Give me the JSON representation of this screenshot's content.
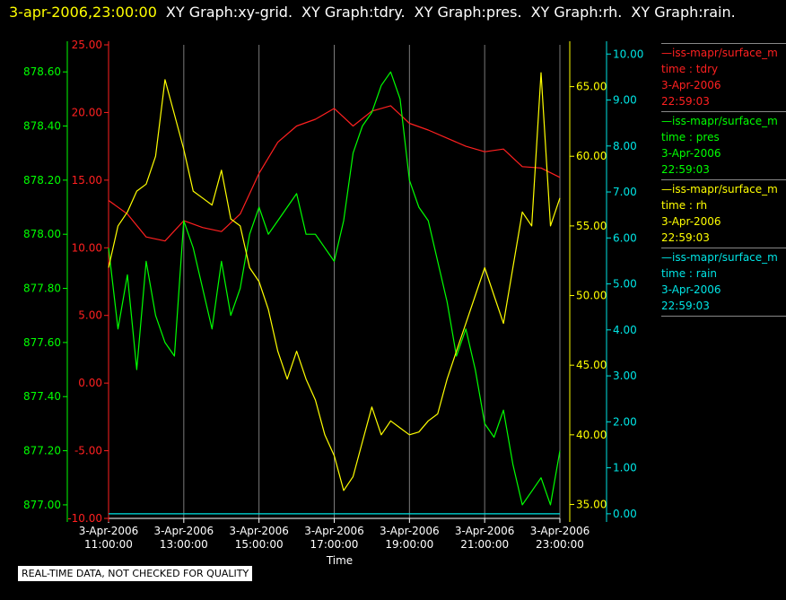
{
  "header": {
    "timestamp": "3-apr-2006,23:00:00",
    "graphs": [
      "XY Graph:xy-grid.",
      "XY Graph:tdry.",
      "XY Graph:pres.",
      "XY Graph:rh.",
      "XY Graph:rain."
    ]
  },
  "legend": [
    {
      "source": "—iss-mapr/surface_m",
      "field": "time : tdry",
      "date": "3-Apr-2006",
      "time": "22:59:03",
      "color": "#ff2020"
    },
    {
      "source": "—iss-mapr/surface_m",
      "field": "time : pres",
      "date": "3-Apr-2006",
      "time": "22:59:03",
      "color": "#00ff00"
    },
    {
      "source": "—iss-mapr/surface_m",
      "field": "time : rh",
      "date": "3-Apr-2006",
      "time": "22:59:03",
      "color": "#ffff00"
    },
    {
      "source": "—iss-mapr/surface_m",
      "field": "time : rain",
      "date": "3-Apr-2006",
      "time": "22:59:03",
      "color": "#00e5e5"
    }
  ],
  "quality_note": "REAL-TIME DATA, NOT CHECKED FOR QUALITY",
  "chart_data": {
    "type": "line",
    "xlabel": "Time",
    "xlim": [
      11,
      23
    ],
    "x_ticks": [
      {
        "value": 11,
        "date": "3-Apr-2006",
        "time": "11:00:00"
      },
      {
        "value": 13,
        "date": "3-Apr-2006",
        "time": "13:00:00"
      },
      {
        "value": 15,
        "date": "3-Apr-2006",
        "time": "15:00:00"
      },
      {
        "value": 17,
        "date": "3-Apr-2006",
        "time": "17:00:00"
      },
      {
        "value": 19,
        "date": "3-Apr-2006",
        "time": "19:00:00"
      },
      {
        "value": 21,
        "date": "3-Apr-2006",
        "time": "21:00:00"
      },
      {
        "value": 23,
        "date": "3-Apr-2006",
        "time": "23:00:00"
      }
    ],
    "grid": "vertical",
    "legend_placement": "right",
    "axes": {
      "pres": {
        "range": [
          876.95,
          878.7
        ],
        "ticks": [
          "877.00",
          "877.20",
          "877.40",
          "877.60",
          "877.80",
          "878.00",
          "878.20",
          "878.40",
          "878.60"
        ],
        "color": "#00ff00",
        "side": "left-outer"
      },
      "tdry": {
        "range": [
          -10,
          25
        ],
        "ticks": [
          "-10.00",
          "-5.00",
          "0.00",
          "5.00",
          "10.00",
          "15.00",
          "20.00",
          "25.00"
        ],
        "color": "#ff2020",
        "side": "left-inner"
      },
      "rh": {
        "range": [
          34,
          68
        ],
        "ticks": [
          "35.00",
          "40.00",
          "45.00",
          "50.00",
          "55.00",
          "60.00",
          "65.00"
        ],
        "color": "#ffff00",
        "side": "right-inner"
      },
      "rain": {
        "range": [
          -0.1,
          10.2
        ],
        "ticks": [
          "0.00",
          "1.00",
          "2.00",
          "3.00",
          "4.00",
          "5.00",
          "6.00",
          "7.00",
          "8.00",
          "9.00",
          "10.00"
        ],
        "color": "#00e5e5",
        "side": "right-outer"
      }
    },
    "series": [
      {
        "name": "tdry",
        "axis": "tdry",
        "color": "#ff2020",
        "x": [
          11,
          11.5,
          12,
          12.5,
          13,
          13.5,
          14,
          14.5,
          15,
          15.5,
          16,
          16.5,
          17,
          17.5,
          18,
          18.5,
          19,
          19.5,
          20,
          20.5,
          21,
          21.5,
          22,
          22.5,
          23
        ],
        "y": [
          13.5,
          12.5,
          10.8,
          10.5,
          12,
          11.5,
          11.2,
          12.5,
          15.5,
          17.8,
          19,
          19.5,
          20.3,
          19,
          20.1,
          20.5,
          19.2,
          18.7,
          18.1,
          17.5,
          17.1,
          17.3,
          16,
          15.9,
          15.2
        ]
      },
      {
        "name": "pres",
        "axis": "pres",
        "color": "#00ff00",
        "x": [
          11,
          11.25,
          11.5,
          11.75,
          12,
          12.25,
          12.5,
          12.75,
          13,
          13.25,
          13.5,
          13.75,
          14,
          14.25,
          14.5,
          14.75,
          15,
          15.25,
          15.5,
          15.75,
          16,
          16.25,
          16.5,
          16.75,
          17,
          17.25,
          17.5,
          17.75,
          18,
          18.25,
          18.5,
          18.75,
          19,
          19.25,
          19.5,
          19.75,
          20,
          20.25,
          20.5,
          20.75,
          21,
          21.25,
          21.5,
          21.75,
          22,
          22.25,
          22.5,
          22.75,
          23
        ],
        "y": [
          877.95,
          877.65,
          877.85,
          877.5,
          877.9,
          877.7,
          877.6,
          877.55,
          878.05,
          877.95,
          877.8,
          877.65,
          877.9,
          877.7,
          877.8,
          878.0,
          878.1,
          878.0,
          878.05,
          878.1,
          878.15,
          878.0,
          878.0,
          877.95,
          877.9,
          878.05,
          878.3,
          878.4,
          878.45,
          878.55,
          878.6,
          878.5,
          878.2,
          878.1,
          878.05,
          877.9,
          877.75,
          877.55,
          877.65,
          877.5,
          877.3,
          877.25,
          877.35,
          877.15,
          877.0,
          877.05,
          877.1,
          877.0,
          877.2
        ]
      },
      {
        "name": "rh",
        "axis": "rh",
        "color": "#ffff00",
        "x": [
          11,
          11.25,
          11.5,
          11.75,
          12,
          12.25,
          12.5,
          12.75,
          13,
          13.25,
          13.5,
          13.75,
          14,
          14.25,
          14.5,
          14.75,
          15,
          15.25,
          15.5,
          15.75,
          16,
          16.25,
          16.5,
          16.75,
          17,
          17.25,
          17.5,
          17.75,
          18,
          18.25,
          18.5,
          18.75,
          19,
          19.25,
          19.5,
          19.75,
          20,
          20.25,
          20.5,
          20.75,
          21,
          21.25,
          21.5,
          21.75,
          22,
          22.25,
          22.5,
          22.75,
          23
        ],
        "y": [
          52,
          55,
          56,
          57.5,
          58,
          60,
          65.5,
          63,
          60.5,
          57.5,
          57,
          56.5,
          59,
          55.5,
          55,
          52,
          51,
          49,
          46,
          44,
          46,
          44,
          42.5,
          40,
          38.5,
          36,
          37,
          39.5,
          42,
          40,
          41,
          40.5,
          40,
          40.2,
          41,
          41.5,
          44,
          46,
          48,
          50,
          52,
          50,
          48,
          52,
          56,
          55,
          66,
          55,
          57
        ]
      },
      {
        "name": "rain",
        "axis": "rain",
        "color": "#00e5e5",
        "x": [
          11,
          23
        ],
        "y": [
          0,
          0
        ]
      }
    ]
  }
}
